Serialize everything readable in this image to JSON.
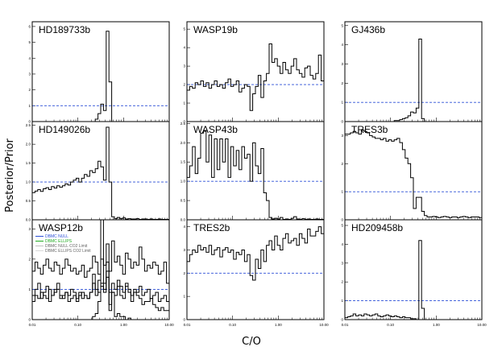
{
  "figure": {
    "xlabel": "C/O",
    "ylabel": "Posterior/Prior"
  },
  "colors": {
    "ref_line": "#2b4fd6",
    "null": "#2b4fd6",
    "ellips": "#22aa22",
    "null_limit": "#c0c0c0",
    "ellips_limit": "#d8d8d8"
  },
  "chart_data": [
    {
      "type": "line",
      "title": "HD189733b",
      "yticks": [
        "0",
        "1",
        "2",
        "3",
        "4",
        "5",
        "6"
      ],
      "ylim": [
        0,
        6.3
      ],
      "xlim": [
        0.01,
        10
      ],
      "xscale": "log",
      "reference": 1,
      "series": [
        {
          "values": [
            0,
            0,
            0,
            0,
            0,
            0,
            0,
            0,
            0,
            0,
            0,
            0,
            0,
            0,
            0,
            0,
            0,
            0,
            0,
            0,
            0,
            0,
            0,
            0.15,
            0.5,
            1.1,
            0.7,
            5.7,
            2.5,
            0,
            0,
            0,
            0,
            0,
            0,
            0,
            0,
            0,
            0,
            0,
            0,
            0,
            0,
            0,
            0,
            0,
            0,
            0,
            0,
            0
          ]
        }
      ]
    },
    {
      "type": "line",
      "title": "WASP19b",
      "yticks": [
        "0",
        "1",
        "2",
        "3",
        "4",
        "5"
      ],
      "ylim": [
        0,
        5.4
      ],
      "xlim": [
        0.01,
        10
      ],
      "xscale": "log",
      "reference": 2,
      "series": [
        {
          "values": [
            1.7,
            1.9,
            1.8,
            2.1,
            2.0,
            2.2,
            1.9,
            2.1,
            1.8,
            2.0,
            2.2,
            1.9,
            2.0,
            1.8,
            2.1,
            2.3,
            1.9,
            2.0,
            2.2,
            1.6,
            1.8,
            2.0,
            1.9,
            0.6,
            1.5,
            1.9,
            2.5,
            1.3,
            2.2,
            2.6,
            4.2,
            3.2,
            3.4,
            3.0,
            2.6,
            3.2,
            2.8,
            2.6,
            3.0,
            3.4,
            2.8,
            2.6,
            2.4,
            2.9,
            3.0,
            2.5,
            2.3,
            2.6,
            3.6,
            2.2
          ]
        }
      ]
    },
    {
      "type": "line",
      "title": "GJ436b",
      "yticks": [
        "0",
        "1",
        "2",
        "3",
        "4",
        "5"
      ],
      "ylim": [
        0,
        5.2
      ],
      "xlim": [
        0.01,
        10
      ],
      "xscale": "log",
      "reference": 1,
      "series": [
        {
          "values": [
            0,
            0,
            0,
            0,
            0,
            0,
            0,
            0,
            0,
            0,
            0,
            0,
            0,
            0,
            0,
            0,
            0,
            0,
            0.05,
            0.05,
            0.1,
            0.15,
            0.2,
            0.3,
            0.5,
            0.45,
            0.7,
            4.3,
            0.15,
            0,
            0,
            0,
            0,
            0,
            0,
            0,
            0,
            0,
            0,
            0,
            0,
            0,
            0,
            0,
            0,
            0,
            0,
            0,
            0,
            0
          ]
        }
      ]
    },
    {
      "type": "line",
      "title": "HD149026b",
      "yticks": [
        "0.0",
        "0.5",
        "1.0",
        "1.5",
        "2.0",
        "2.5"
      ],
      "ylim": [
        0,
        2.6
      ],
      "xlim": [
        0.01,
        10
      ],
      "xscale": "log",
      "reference": 1,
      "series": [
        {
          "values": [
            0.72,
            0.76,
            0.8,
            0.75,
            0.82,
            0.85,
            0.8,
            0.88,
            0.84,
            0.9,
            0.86,
            0.9,
            0.95,
            0.92,
            1.0,
            1.05,
            1.1,
            1.0,
            1.1,
            1.2,
            1.15,
            1.3,
            1.25,
            1.35,
            1.55,
            1.4,
            1.05,
            2.45,
            1.0,
            0.08,
            0.03,
            0.06,
            0.03,
            0.05,
            0.02,
            0.03,
            0.02,
            0.02,
            0.03,
            0.01,
            0.02,
            0.02,
            0.01,
            0.02,
            0.01,
            0.01,
            0.02,
            0.01,
            0.01,
            0.01
          ]
        }
      ]
    },
    {
      "type": "line",
      "title": "WASP43b",
      "yticks": [
        "0.0",
        "0.5",
        "1.0",
        "1.5",
        "2.0",
        "2.5"
      ],
      "ylim": [
        0,
        2.55
      ],
      "xlim": [
        0.01,
        10
      ],
      "xscale": "log",
      "reference": 1,
      "series": [
        {
          "values": [
            1.1,
            1.4,
            1.9,
            1.2,
            1.6,
            2.25,
            2.3,
            1.5,
            2.2,
            1.1,
            2.1,
            1.3,
            2.1,
            1.5,
            2.1,
            1.1,
            1.9,
            1.4,
            1.8,
            1.3,
            1.9,
            1.6,
            1.7,
            1.0,
            2.0,
            1.4,
            1.2,
            1.85,
            0.7,
            0.5,
            0.06,
            0.02,
            0.04,
            0.02,
            0.06,
            0.01,
            0.02,
            0.01,
            0.04,
            0.08,
            0.02,
            0.01,
            0.03,
            0.01,
            0.02,
            0.01,
            0.01,
            0.02,
            0.01,
            0.01
          ]
        }
      ]
    },
    {
      "type": "line",
      "title": "TRES3b",
      "yticks": [
        "0",
        "1",
        "2",
        "3"
      ],
      "ylim": [
        0,
        3.5
      ],
      "xlim": [
        0.01,
        10
      ],
      "xscale": "log",
      "reference": 1,
      "series": [
        {
          "values": [
            3.05,
            3.05,
            3.1,
            3.15,
            3.1,
            3.05,
            3.2,
            3.15,
            3.1,
            3.0,
            2.95,
            2.9,
            2.9,
            2.85,
            2.9,
            2.8,
            2.85,
            2.8,
            2.85,
            2.9,
            2.75,
            2.5,
            2.2,
            2.0,
            1.5,
            0.4,
            0.8,
            0.8,
            0.3,
            0.15,
            0.1,
            0.1,
            0.12,
            0.1,
            0.08,
            0.1,
            0.12,
            0.1,
            0.08,
            0.1,
            0.1,
            0.08,
            0.1,
            0.12,
            0.1,
            0.08,
            0.1,
            0.1,
            0.1,
            0.08
          ]
        }
      ]
    },
    {
      "type": "line",
      "title": "WASP12b",
      "yticks": [
        "0",
        "1",
        "2",
        "3"
      ],
      "ylim": [
        0,
        3.3
      ],
      "xlim": [
        0.01,
        10
      ],
      "xscale": "log",
      "reference": 1,
      "legend": [
        "DBMC NULL",
        "DBMC ELLIPS",
        "DBMC NULL CO2 Limit",
        "DBMC ELLIPS CO2 Limit"
      ],
      "series": [
        {
          "name": "DBMC NULL",
          "values": [
            0.8,
            1.0,
            1.2,
            0.7,
            0.9,
            1.1,
            0.6,
            0.8,
            1.0,
            1.2,
            0.7,
            0.8,
            0.9,
            0.6,
            0.7,
            0.8,
            0.6,
            0.9,
            0.7,
            0.8,
            0.7,
            0.9,
            1.5,
            0.8,
            1.3,
            1.2,
            0.9,
            1.6,
            0.5,
            0.9,
            0.8,
            1.1,
            0.8,
            0.7,
            1.1,
            0.9,
            0.6,
            0.9,
            0.8,
            0.7,
            0.5,
            0.6,
            0.6,
            0.7,
            0.5,
            0.4,
            0.3,
            0.4,
            0.3,
            0.3
          ]
        },
        {
          "name": "DBMC ELLIPS",
          "values": [
            0,
            0,
            0,
            0,
            0,
            0,
            0,
            0,
            0,
            0,
            0,
            0,
            0,
            0,
            0,
            0,
            0,
            0,
            0,
            0,
            0,
            0,
            0.1,
            0.2,
            0.6,
            3.3,
            1.2,
            1.9,
            0.3,
            0.9,
            0.1,
            0.2,
            0.1,
            0.1,
            0,
            0.05,
            0,
            0,
            0,
            0,
            0,
            0,
            0,
            0,
            0,
            0,
            0,
            0,
            0,
            0
          ]
        },
        {
          "name": "DBMC NULL CO2 Limit",
          "values": [
            1.6,
            1.9,
            1.7,
            1.5,
            1.8,
            2.0,
            1.7,
            1.6,
            1.9,
            1.8,
            1.5,
            1.7,
            2.0,
            1.8,
            1.6,
            1.7,
            1.5,
            1.6,
            1.8,
            1.4,
            1.6,
            1.7,
            2.1,
            1.9,
            1.5,
            2.0,
            1.8,
            2.5,
            1.6,
            2.6,
            1.9,
            2.1,
            1.8,
            1.5,
            2.2,
            2.0,
            1.7,
            1.9,
            1.8,
            2.4,
            2.0,
            1.6,
            1.8,
            1.7,
            1.9,
            1.8,
            1.5,
            1.6,
            1.9,
            1.2
          ]
        },
        {
          "name": "DBMC ELLIPS CO2 Limit",
          "values": [
            0.6,
            0.8,
            0.7,
            0.9,
            0.8,
            0.7,
            1.0,
            0.8,
            0.9,
            1.0,
            0.8,
            0.7,
            0.9,
            0.8,
            1.0,
            0.9,
            0.7,
            0.8,
            0.9,
            0.8,
            0.7,
            0.9,
            1.2,
            1.0,
            0.9,
            1.1,
            1.0,
            1.4,
            0.9,
            1.2,
            1.0,
            1.3,
            1.1,
            0.9,
            1.2,
            1.0,
            0.8,
            1.0,
            0.9,
            1.1,
            0.8,
            0.9,
            1.0,
            0.7,
            0.8,
            0.9,
            0.6,
            0.7,
            0.8,
            0.6
          ]
        }
      ]
    },
    {
      "type": "line",
      "title": "TRES2b",
      "yticks": [
        "0",
        "1",
        "2",
        "3",
        "4"
      ],
      "ylim": [
        0,
        4.3
      ],
      "xlim": [
        0.01,
        10
      ],
      "xscale": "log",
      "reference": 2,
      "series": [
        {
          "values": [
            2.5,
            2.8,
            3.0,
            2.9,
            3.2,
            3.0,
            3.1,
            2.9,
            3.2,
            2.8,
            3.0,
            3.1,
            2.7,
            3.0,
            3.1,
            2.9,
            3.0,
            2.6,
            2.9,
            2.8,
            3.0,
            2.5,
            2.8,
            1.9,
            1.7,
            2.6,
            2.2,
            3.0,
            2.5,
            3.2,
            3.4,
            3.0,
            3.6,
            3.2,
            3.0,
            3.5,
            3.7,
            3.3,
            3.4,
            3.5,
            3.2,
            3.7,
            3.5,
            3.3,
            3.9,
            3.6,
            3.6,
            3.8,
            4.0,
            3.7
          ]
        }
      ]
    },
    {
      "type": "line",
      "title": "HD209458b",
      "yticks": [
        "0",
        "1",
        "2",
        "3",
        "4",
        "5"
      ],
      "ylim": [
        0,
        5.3
      ],
      "xlim": [
        0.01,
        10
      ],
      "xscale": "log",
      "reference": 1,
      "series": [
        {
          "values": [
            0.1,
            0.15,
            0.2,
            0.3,
            0.2,
            0.25,
            0.2,
            0.3,
            0.25,
            0.2,
            0.25,
            0.3,
            0.2,
            0.15,
            0.2,
            0.25,
            0.2,
            0.15,
            0.2,
            0.15,
            0.1,
            0.15,
            0.1,
            0.1,
            0.05,
            0.05,
            0,
            4.2,
            0.6,
            0,
            0,
            0,
            0,
            0,
            0,
            0,
            0,
            0,
            0,
            0,
            0,
            0,
            0,
            0,
            0,
            0,
            0,
            0,
            0,
            0
          ]
        }
      ]
    }
  ],
  "xticks": [
    "0.01",
    "0.10",
    "1.00",
    "10.00"
  ]
}
